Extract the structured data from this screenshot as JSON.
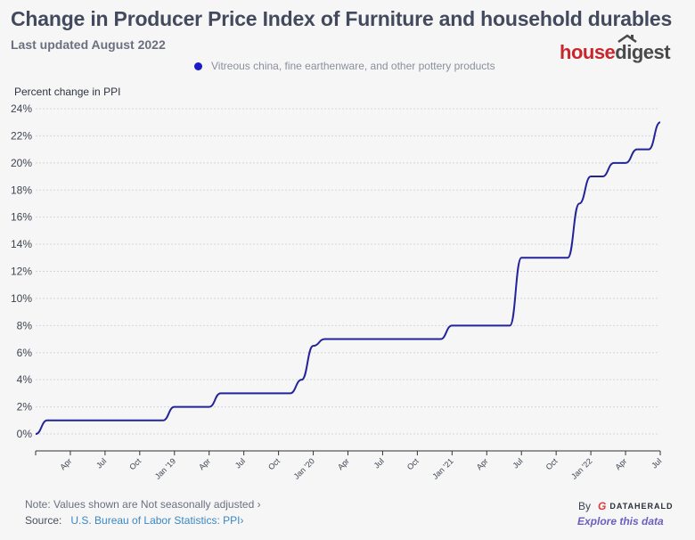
{
  "header": {
    "title": "Change in Producer Price Index of Furniture and household durables",
    "subtitle": "Last updated August 2022"
  },
  "legend": {
    "label": "Vitreous china, fine earthenware, and other pottery products",
    "color": "#1a1ac8"
  },
  "logo": {
    "part1": "house",
    "part2": "digest"
  },
  "footer": {
    "note": "Note: Values shown are Not seasonally adjusted",
    "note_chevron": "›",
    "source_label": "Source:",
    "source_link": "U.S. Bureau of Labor Statistics: PPI",
    "source_chevron": "›",
    "by_label": "By",
    "brand": "DATAHERALD",
    "explore": "Explore this data"
  },
  "chart_data": {
    "type": "line",
    "title": "Change in Producer Price Index of Furniture and household durables",
    "subtitle": "Last updated August 2022",
    "xlabel": "",
    "ylabel": "Percent change in PPI",
    "ylim": [
      0,
      24
    ],
    "yticks": [
      0,
      2,
      4,
      6,
      8,
      10,
      12,
      14,
      16,
      18,
      20,
      22,
      24
    ],
    "ytick_labels": [
      "0%",
      "2%",
      "4%",
      "6%",
      "8%",
      "10%",
      "12%",
      "14%",
      "16%",
      "18%",
      "20%",
      "22%",
      "24%"
    ],
    "grid": true,
    "legend_position": "top",
    "x_start": "2018-01",
    "x_end": "2022-07",
    "xticks": [
      {
        "month": 3,
        "label": "Apr"
      },
      {
        "month": 6,
        "label": "Jul"
      },
      {
        "month": 9,
        "label": "Oct"
      },
      {
        "month": 12,
        "label": "Jan '19"
      },
      {
        "month": 15,
        "label": "Apr"
      },
      {
        "month": 18,
        "label": "Jul"
      },
      {
        "month": 21,
        "label": "Oct"
      },
      {
        "month": 24,
        "label": "Jan '20"
      },
      {
        "month": 27,
        "label": "Apr"
      },
      {
        "month": 30,
        "label": "Jul"
      },
      {
        "month": 33,
        "label": "Oct"
      },
      {
        "month": 36,
        "label": "Jan '21"
      },
      {
        "month": 39,
        "label": "Apr"
      },
      {
        "month": 42,
        "label": "Jul"
      },
      {
        "month": 45,
        "label": "Oct"
      },
      {
        "month": 48,
        "label": "Jan '22"
      },
      {
        "month": 51,
        "label": "Apr"
      },
      {
        "month": 54,
        "label": "Jul"
      }
    ],
    "series": [
      {
        "name": "Vitreous china, fine earthenware, and other pottery products",
        "color": "#23239a",
        "x": [
          "2018-01",
          "2018-02",
          "2018-03",
          "2018-04",
          "2018-05",
          "2018-06",
          "2018-07",
          "2018-08",
          "2018-09",
          "2018-10",
          "2018-11",
          "2018-12",
          "2019-01",
          "2019-02",
          "2019-03",
          "2019-04",
          "2019-05",
          "2019-06",
          "2019-07",
          "2019-08",
          "2019-09",
          "2019-10",
          "2019-11",
          "2019-12",
          "2020-01",
          "2020-02",
          "2020-03",
          "2020-04",
          "2020-05",
          "2020-06",
          "2020-07",
          "2020-08",
          "2020-09",
          "2020-10",
          "2020-11",
          "2020-12",
          "2021-01",
          "2021-02",
          "2021-03",
          "2021-04",
          "2021-05",
          "2021-06",
          "2021-07",
          "2021-08",
          "2021-09",
          "2021-10",
          "2021-11",
          "2021-12",
          "2022-01",
          "2022-02",
          "2022-03",
          "2022-04",
          "2022-05",
          "2022-06",
          "2022-07"
        ],
        "values": [
          0,
          1,
          1,
          1,
          1,
          1,
          1,
          1,
          1,
          1,
          1,
          1,
          2,
          2,
          2,
          2,
          3,
          3,
          3,
          3,
          3,
          3,
          3,
          4,
          6.5,
          7,
          7,
          7,
          7,
          7,
          7,
          7,
          7,
          7,
          7,
          7,
          8,
          8,
          8,
          8,
          8,
          8,
          13,
          13,
          13,
          13,
          13,
          17,
          19,
          19,
          20,
          20,
          21,
          21,
          23
        ]
      }
    ]
  }
}
